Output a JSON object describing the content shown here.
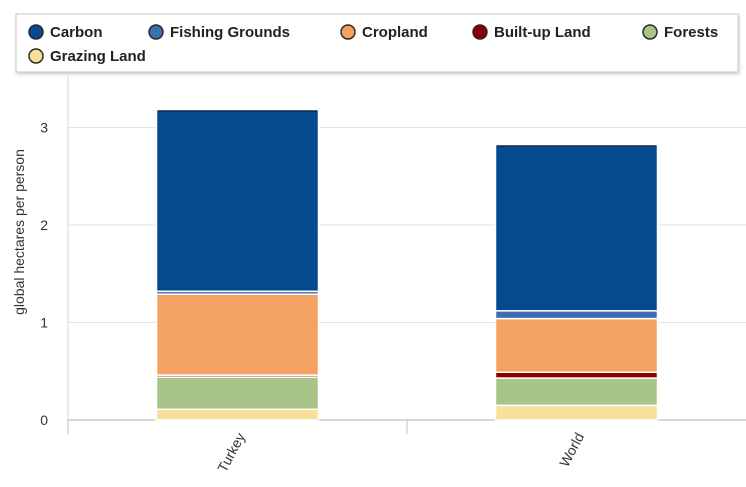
{
  "chart_data": {
    "type": "bar",
    "stacked": true,
    "categories": [
      "Turkey",
      "World"
    ],
    "series": [
      {
        "name": "Grazing Land",
        "color": "#f7e09a",
        "values": [
          0.11,
          0.15
        ]
      },
      {
        "name": "Forests",
        "color": "#a9c489",
        "values": [
          0.33,
          0.28
        ]
      },
      {
        "name": "Built-up Land",
        "color": "#8b0000",
        "values": [
          0.02,
          0.06
        ]
      },
      {
        "name": "Cropland",
        "color": "#f4a261",
        "values": [
          0.83,
          0.55
        ]
      },
      {
        "name": "Fishing Grounds",
        "color": "#3d6fb0",
        "values": [
          0.03,
          0.08
        ]
      },
      {
        "name": "Carbon",
        "color": "#054a8f",
        "values": [
          1.86,
          1.7
        ]
      }
    ],
    "legend": {
      "placement": "top",
      "order": [
        "Carbon",
        "Fishing Grounds",
        "Cropland",
        "Built-up Land",
        "Forests",
        "Grazing Land"
      ]
    },
    "ylabel": "global hectares per person",
    "xlabel": "",
    "ylim": [
      0,
      3.35
    ],
    "yticks": [
      0,
      1,
      2,
      3
    ],
    "grid": true
  }
}
